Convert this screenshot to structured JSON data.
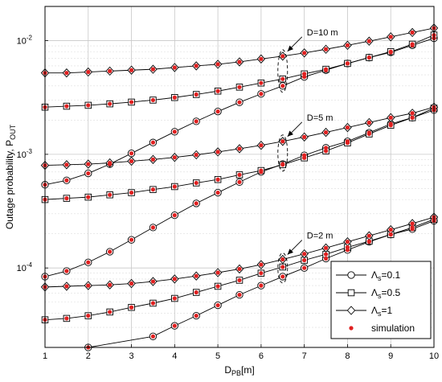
{
  "chart_data": {
    "type": "line",
    "xlabel_main": "D",
    "xlabel_sub": "PB",
    "xlabel_unit": "[m]",
    "ylabel_main": "Outage probability, P",
    "ylabel_sub": "OUT",
    "xlim": [
      1,
      10
    ],
    "ylim": [
      2e-05,
      0.02
    ],
    "yscale": "log",
    "grid": true,
    "legend_position": "bottom-right",
    "x": [
      1,
      1.5,
      2,
      2.5,
      3,
      3.5,
      4,
      4.5,
      5,
      5.5,
      6,
      6.5,
      7,
      7.5,
      8,
      8.5,
      9,
      9.5,
      10
    ],
    "xticks": [
      "1",
      "2",
      "3",
      "4",
      "5",
      "6",
      "7",
      "8",
      "9",
      "10"
    ],
    "yticks": [
      {
        "base": "10",
        "exp": "-4",
        "value": 0.0001
      },
      {
        "base": "10",
        "exp": "-3",
        "value": 0.001
      },
      {
        "base": "10",
        "exp": "-2",
        "value": 0.01
      }
    ],
    "annotations": [
      {
        "text": "D=10 m",
        "y": 0.0068
      },
      {
        "text": "D=5 m",
        "y": 0.00127
      },
      {
        "text": "D=2 m",
        "y": 0.000125
      }
    ],
    "legend": [
      {
        "symbol": "Λ",
        "sub": "s",
        "text": "=0.1",
        "marker": "circle"
      },
      {
        "symbol": "Λ",
        "sub": "s",
        "text": "=0.5",
        "marker": "square"
      },
      {
        "symbol": "Λ",
        "sub": "s",
        "text": "=1",
        "marker": "diamond"
      },
      {
        "symbol": "",
        "sub": "",
        "text": "simulation",
        "marker": "dot"
      }
    ],
    "series": [
      {
        "group": "D=10 m",
        "marker": "circle",
        "values": [
          0.00054,
          0.00059,
          0.00068,
          0.00082,
          0.00102,
          0.00127,
          0.00158,
          0.00195,
          0.00238,
          0.00287,
          0.0034,
          0.004,
          0.0048,
          0.0055,
          0.0063,
          0.0071,
          0.0079,
          0.0091,
          0.0105
        ]
      },
      {
        "group": "D=10 m",
        "marker": "square",
        "values": [
          0.0026,
          0.00265,
          0.0027,
          0.00278,
          0.00288,
          0.003,
          0.00316,
          0.00336,
          0.0036,
          0.0039,
          0.00424,
          0.0046,
          0.0051,
          0.0056,
          0.0063,
          0.0071,
          0.008,
          0.0093,
          0.0112
        ]
      },
      {
        "group": "D=10 m",
        "marker": "diamond",
        "values": [
          0.0052,
          0.0052,
          0.0053,
          0.0054,
          0.0055,
          0.0056,
          0.0058,
          0.006,
          0.0062,
          0.0065,
          0.0069,
          0.0073,
          0.0078,
          0.0084,
          0.0091,
          0.0099,
          0.0108,
          0.0118,
          0.0129
        ]
      },
      {
        "group": "D=5 m",
        "marker": "circle",
        "values": [
          8.4e-05,
          9.4e-05,
          0.000112,
          0.000139,
          0.000177,
          0.000227,
          0.000291,
          0.00037,
          0.00046,
          0.00057,
          0.0007,
          0.00082,
          0.00098,
          0.00114,
          0.0013,
          0.00155,
          0.00185,
          0.0021,
          0.00245
        ]
      },
      {
        "group": "D=5 m",
        "marker": "square",
        "values": [
          0.0004,
          0.00041,
          0.00042,
          0.00044,
          0.00046,
          0.00049,
          0.00052,
          0.00056,
          0.0006,
          0.00066,
          0.00072,
          0.00081,
          0.00093,
          0.00107,
          0.00126,
          0.00151,
          0.0018,
          0.0021,
          0.00255
        ]
      },
      {
        "group": "D=5 m",
        "marker": "diamond",
        "values": [
          0.0008,
          0.00081,
          0.00082,
          0.00084,
          0.00087,
          0.0009,
          0.00094,
          0.00099,
          0.00105,
          0.00112,
          0.0012,
          0.0013,
          0.00142,
          0.00156,
          0.00172,
          0.0019,
          0.0021,
          0.0023,
          0.0026
        ]
      },
      {
        "group": "D=2 m",
        "marker": "circle",
        "values": [
          null,
          null,
          2e-05,
          1.4e-05,
          1.9e-05,
          2.5e-05,
          3.1e-05,
          3.8e-05,
          4.7e-05,
          5.8e-05,
          7e-05,
          8.4e-05,
          0.0001,
          0.000121,
          0.000144,
          0.00017,
          0.000197,
          0.00022,
          0.00026
        ]
      },
      {
        "group": "D=2 m",
        "marker": "square",
        "values": [
          3.5e-05,
          3.6e-05,
          3.8e-05,
          4.1e-05,
          4.5e-05,
          4.9e-05,
          5.4e-05,
          6.1e-05,
          6.9e-05,
          7.8e-05,
          9e-05,
          0.000102,
          0.000117,
          0.000132,
          0.000152,
          0.000172,
          0.000197,
          0.000227,
          0.000268
        ]
      },
      {
        "group": "D=2 m",
        "marker": "diamond",
        "values": [
          6.8e-05,
          6.9e-05,
          7e-05,
          7.1e-05,
          7.3e-05,
          7.6e-05,
          8e-05,
          8.5e-05,
          9.1e-05,
          9.8e-05,
          0.000107,
          0.000119,
          0.000133,
          0.00015,
          0.00017,
          0.000192,
          0.000217,
          0.000246,
          0.00028
        ]
      }
    ]
  }
}
